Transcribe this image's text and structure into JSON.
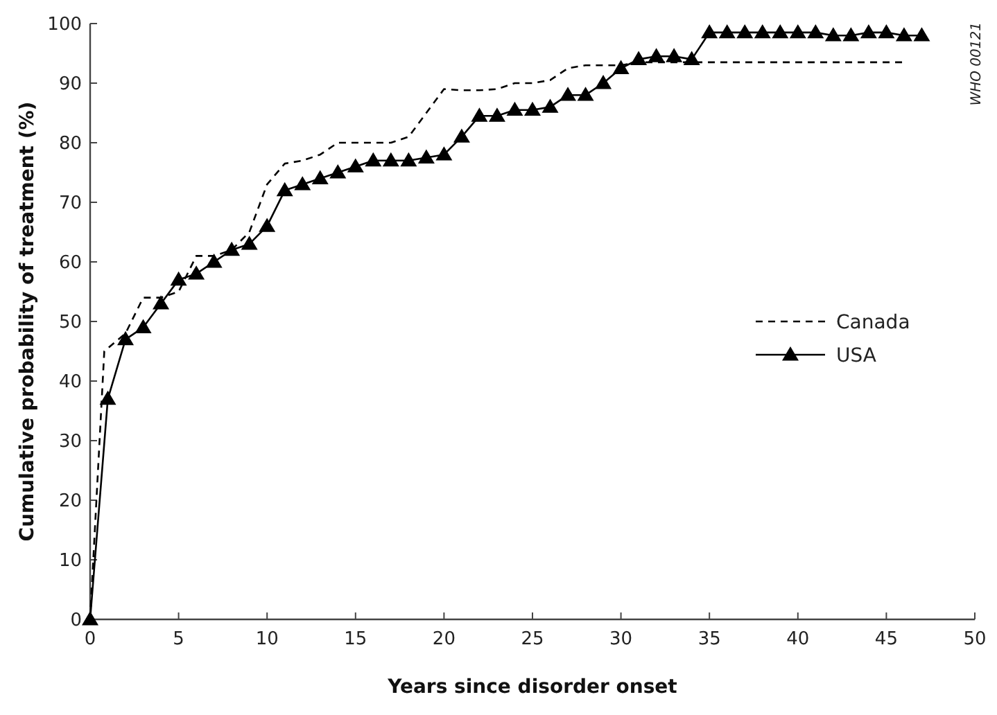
{
  "chart_data": {
    "type": "line",
    "xlabel": "Years since disorder onset",
    "ylabel": "Cumulative probability of treatment (%)",
    "xlim": [
      0,
      50
    ],
    "ylim": [
      0,
      100
    ],
    "xticks": [
      0,
      5,
      10,
      15,
      20,
      25,
      30,
      35,
      40,
      45,
      50
    ],
    "yticks": [
      0,
      10,
      20,
      30,
      40,
      50,
      60,
      70,
      80,
      90,
      100
    ],
    "grid": false,
    "legend": "right",
    "annotations": [
      "WHO 00121"
    ],
    "series": [
      {
        "name": "Canada",
        "color": "#000000",
        "line_style": "dashed",
        "marker": "none",
        "x": [
          0,
          0.8,
          2,
          3,
          4,
          5,
          6,
          7,
          8,
          9,
          10,
          11,
          12,
          13,
          14,
          15,
          16,
          17,
          18,
          19,
          20,
          21,
          22,
          23,
          24,
          25,
          26,
          27,
          28,
          29,
          30,
          31,
          32,
          33,
          34,
          35,
          36,
          37,
          38,
          39,
          40,
          41,
          42,
          43,
          44,
          45,
          46
        ],
        "values": [
          0,
          45,
          48,
          54,
          54,
          55,
          61,
          61,
          62,
          65,
          73,
          76.5,
          77,
          78,
          80,
          80,
          80,
          80,
          81,
          85,
          89,
          88.8,
          88.8,
          89,
          90,
          90,
          90.5,
          92.5,
          93,
          93,
          93,
          93.5,
          93.5,
          93.5,
          93.5,
          93.5,
          93.5,
          93.5,
          93.5,
          93.5,
          93.5,
          93.5,
          93.5,
          93.5,
          93.5,
          93.5,
          93.5
        ]
      },
      {
        "name": "USA",
        "color": "#000000",
        "line_style": "solid",
        "marker": "triangle",
        "x": [
          0,
          1,
          2,
          3,
          4,
          5,
          6,
          7,
          8,
          9,
          10,
          11,
          12,
          13,
          14,
          15,
          16,
          17,
          18,
          19,
          20,
          21,
          22,
          23,
          24,
          25,
          26,
          27,
          28,
          29,
          30,
          31,
          32,
          33,
          34,
          35,
          36,
          37,
          38,
          39,
          40,
          41,
          42,
          43,
          44,
          45,
          46,
          47
        ],
        "values": [
          0,
          37,
          47,
          49,
          53,
          57,
          58,
          60,
          62,
          63,
          66,
          72,
          73,
          74,
          75,
          76,
          77,
          77,
          77,
          77.5,
          78,
          81,
          84.5,
          84.5,
          85.5,
          85.5,
          86,
          88,
          88,
          90,
          92.5,
          94,
          94.5,
          94.5,
          94,
          98.5,
          98.5,
          98.5,
          98.5,
          98.5,
          98.5,
          98.5,
          98,
          98,
          98.5,
          98.5,
          98,
          98
        ]
      }
    ]
  }
}
